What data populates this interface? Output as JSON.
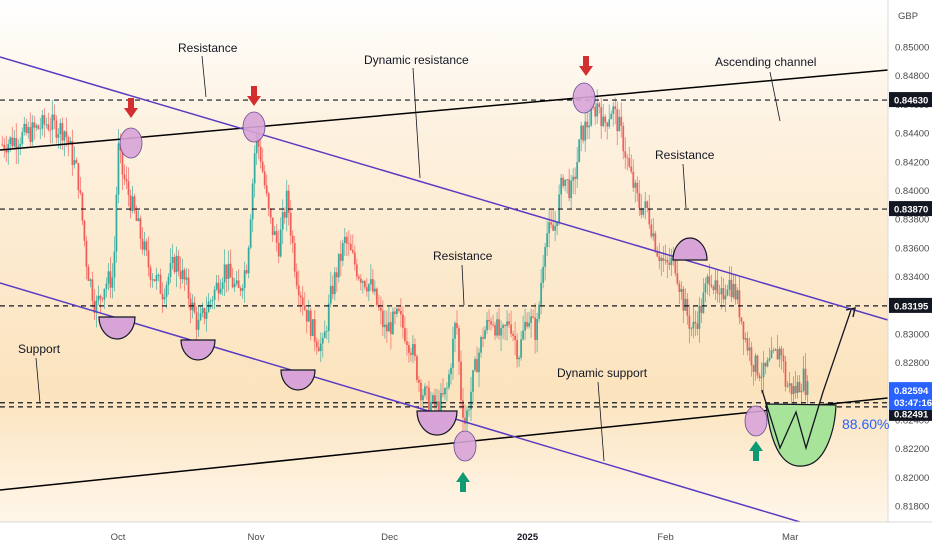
{
  "chart_data": {
    "type": "candlestick",
    "currency": "GBP",
    "y_range": [
      0.816,
      0.852
    ],
    "y_ticks": [
      "0.85000",
      "0.84800",
      "0.84600",
      "0.84400",
      "0.84200",
      "0.84000",
      "0.83800",
      "0.83600",
      "0.83400",
      "0.83200",
      "0.83000",
      "0.82800",
      "0.82600",
      "0.82400",
      "0.82200",
      "0.82000",
      "0.81800"
    ],
    "x_ticks": [
      {
        "label": "Oct",
        "day": 14,
        "bold": false
      },
      {
        "label": "Nov",
        "day": 45,
        "bold": false
      },
      {
        "label": "Dec",
        "day": 75,
        "bold": false
      },
      {
        "label": "2025",
        "day": 106,
        "bold": true
      },
      {
        "label": "Feb",
        "day": 137,
        "bold": false
      },
      {
        "label": "Mar",
        "day": 165,
        "bold": false
      }
    ],
    "x_range": [
      -12,
      208
    ],
    "price_path": [
      [
        -12,
        0.8432
      ],
      [
        -6,
        0.844
      ],
      [
        -2,
        0.8447
      ],
      [
        2,
        0.8442
      ],
      [
        5,
        0.841
      ],
      [
        7,
        0.8348
      ],
      [
        9,
        0.8318
      ],
      [
        11,
        0.8335
      ],
      [
        13,
        0.834
      ],
      [
        14,
        0.843
      ],
      [
        15,
        0.8412
      ],
      [
        18,
        0.838
      ],
      [
        21,
        0.8346
      ],
      [
        24,
        0.833
      ],
      [
        27,
        0.8352
      ],
      [
        29,
        0.8336
      ],
      [
        32,
        0.8305
      ],
      [
        35,
        0.8325
      ],
      [
        38,
        0.8346
      ],
      [
        41,
        0.8328
      ],
      [
        43,
        0.835
      ],
      [
        45,
        0.844
      ],
      [
        46,
        0.8425
      ],
      [
        48,
        0.838
      ],
      [
        50,
        0.836
      ],
      [
        52,
        0.8395
      ],
      [
        54,
        0.8342
      ],
      [
        56,
        0.8318
      ],
      [
        58,
        0.83
      ],
      [
        60,
        0.829
      ],
      [
        62,
        0.833
      ],
      [
        65,
        0.8365
      ],
      [
        68,
        0.8343
      ],
      [
        71,
        0.8332
      ],
      [
        74,
        0.8302
      ],
      [
        77,
        0.8312
      ],
      [
        80,
        0.829
      ],
      [
        82,
        0.8262
      ],
      [
        84,
        0.8252
      ],
      [
        86,
        0.8248
      ],
      [
        88,
        0.8262
      ],
      [
        90,
        0.8312
      ],
      [
        91,
        0.8258
      ],
      [
        92,
        0.8238
      ],
      [
        94,
        0.8272
      ],
      [
        96,
        0.83
      ],
      [
        98,
        0.8312
      ],
      [
        100,
        0.8296
      ],
      [
        102,
        0.831
      ],
      [
        104,
        0.8286
      ],
      [
        106,
        0.8314
      ],
      [
        108,
        0.83
      ],
      [
        110,
        0.837
      ],
      [
        112,
        0.8372
      ],
      [
        114,
        0.841
      ],
      [
        116,
        0.8398
      ],
      [
        118,
        0.8438
      ],
      [
        120,
        0.845
      ],
      [
        122,
        0.8462
      ],
      [
        123,
        0.8445
      ],
      [
        125,
        0.8458
      ],
      [
        127,
        0.844
      ],
      [
        129,
        0.8412
      ],
      [
        131,
        0.839
      ],
      [
        133,
        0.8386
      ],
      [
        135,
        0.836
      ],
      [
        137,
        0.8346
      ],
      [
        139,
        0.8352
      ],
      [
        141,
        0.8322
      ],
      [
        143,
        0.8302
      ],
      [
        145,
        0.8318
      ],
      [
        147,
        0.8344
      ],
      [
        149,
        0.832
      ],
      [
        151,
        0.8338
      ],
      [
        153,
        0.8326
      ],
      [
        155,
        0.8296
      ],
      [
        157,
        0.8278
      ],
      [
        159,
        0.8272
      ],
      [
        161,
        0.8282
      ],
      [
        163,
        0.829
      ],
      [
        164,
        0.8265
      ],
      [
        166,
        0.826
      ],
      [
        168,
        0.827
      ],
      [
        169,
        0.8259
      ]
    ],
    "horizontal_levels": [
      {
        "value": 0.8463,
        "label": "0.84630",
        "bg": "#131722"
      },
      {
        "value": 0.8387,
        "label": "0.83870",
        "bg": "#131722"
      },
      {
        "value": 0.83195,
        "label": "0.83195",
        "bg": "#131722"
      },
      {
        "value": 0.8252,
        "label": "0.82520",
        "bg": "#131722"
      },
      {
        "value": 0.82491,
        "label": "0.82491",
        "bg": "#131722"
      }
    ],
    "current_price": {
      "value": "0.82594",
      "countdown": "03:47:16",
      "bg": "#2962ff"
    },
    "annotations": {
      "resistance_top": "Resistance",
      "dynamic_resistance": "Dynamic resistance",
      "ascending_channel": "Ascending channel",
      "resistance_right": "Resistance",
      "resistance_mid": "Resistance",
      "support": "Support",
      "dynamic_support": "Dynamic support",
      "percent": "88.60%"
    },
    "colors": {
      "up": "#26a69a",
      "down": "#ef5350",
      "channel_line": "#000000",
      "dynamic_line": "#5b3bc2",
      "marker_fill": "#d8a4d8",
      "arrow_down": "#d32f2f",
      "arrow_up": "#0f9a73",
      "projection_fill": "#a8e39a"
    }
  }
}
